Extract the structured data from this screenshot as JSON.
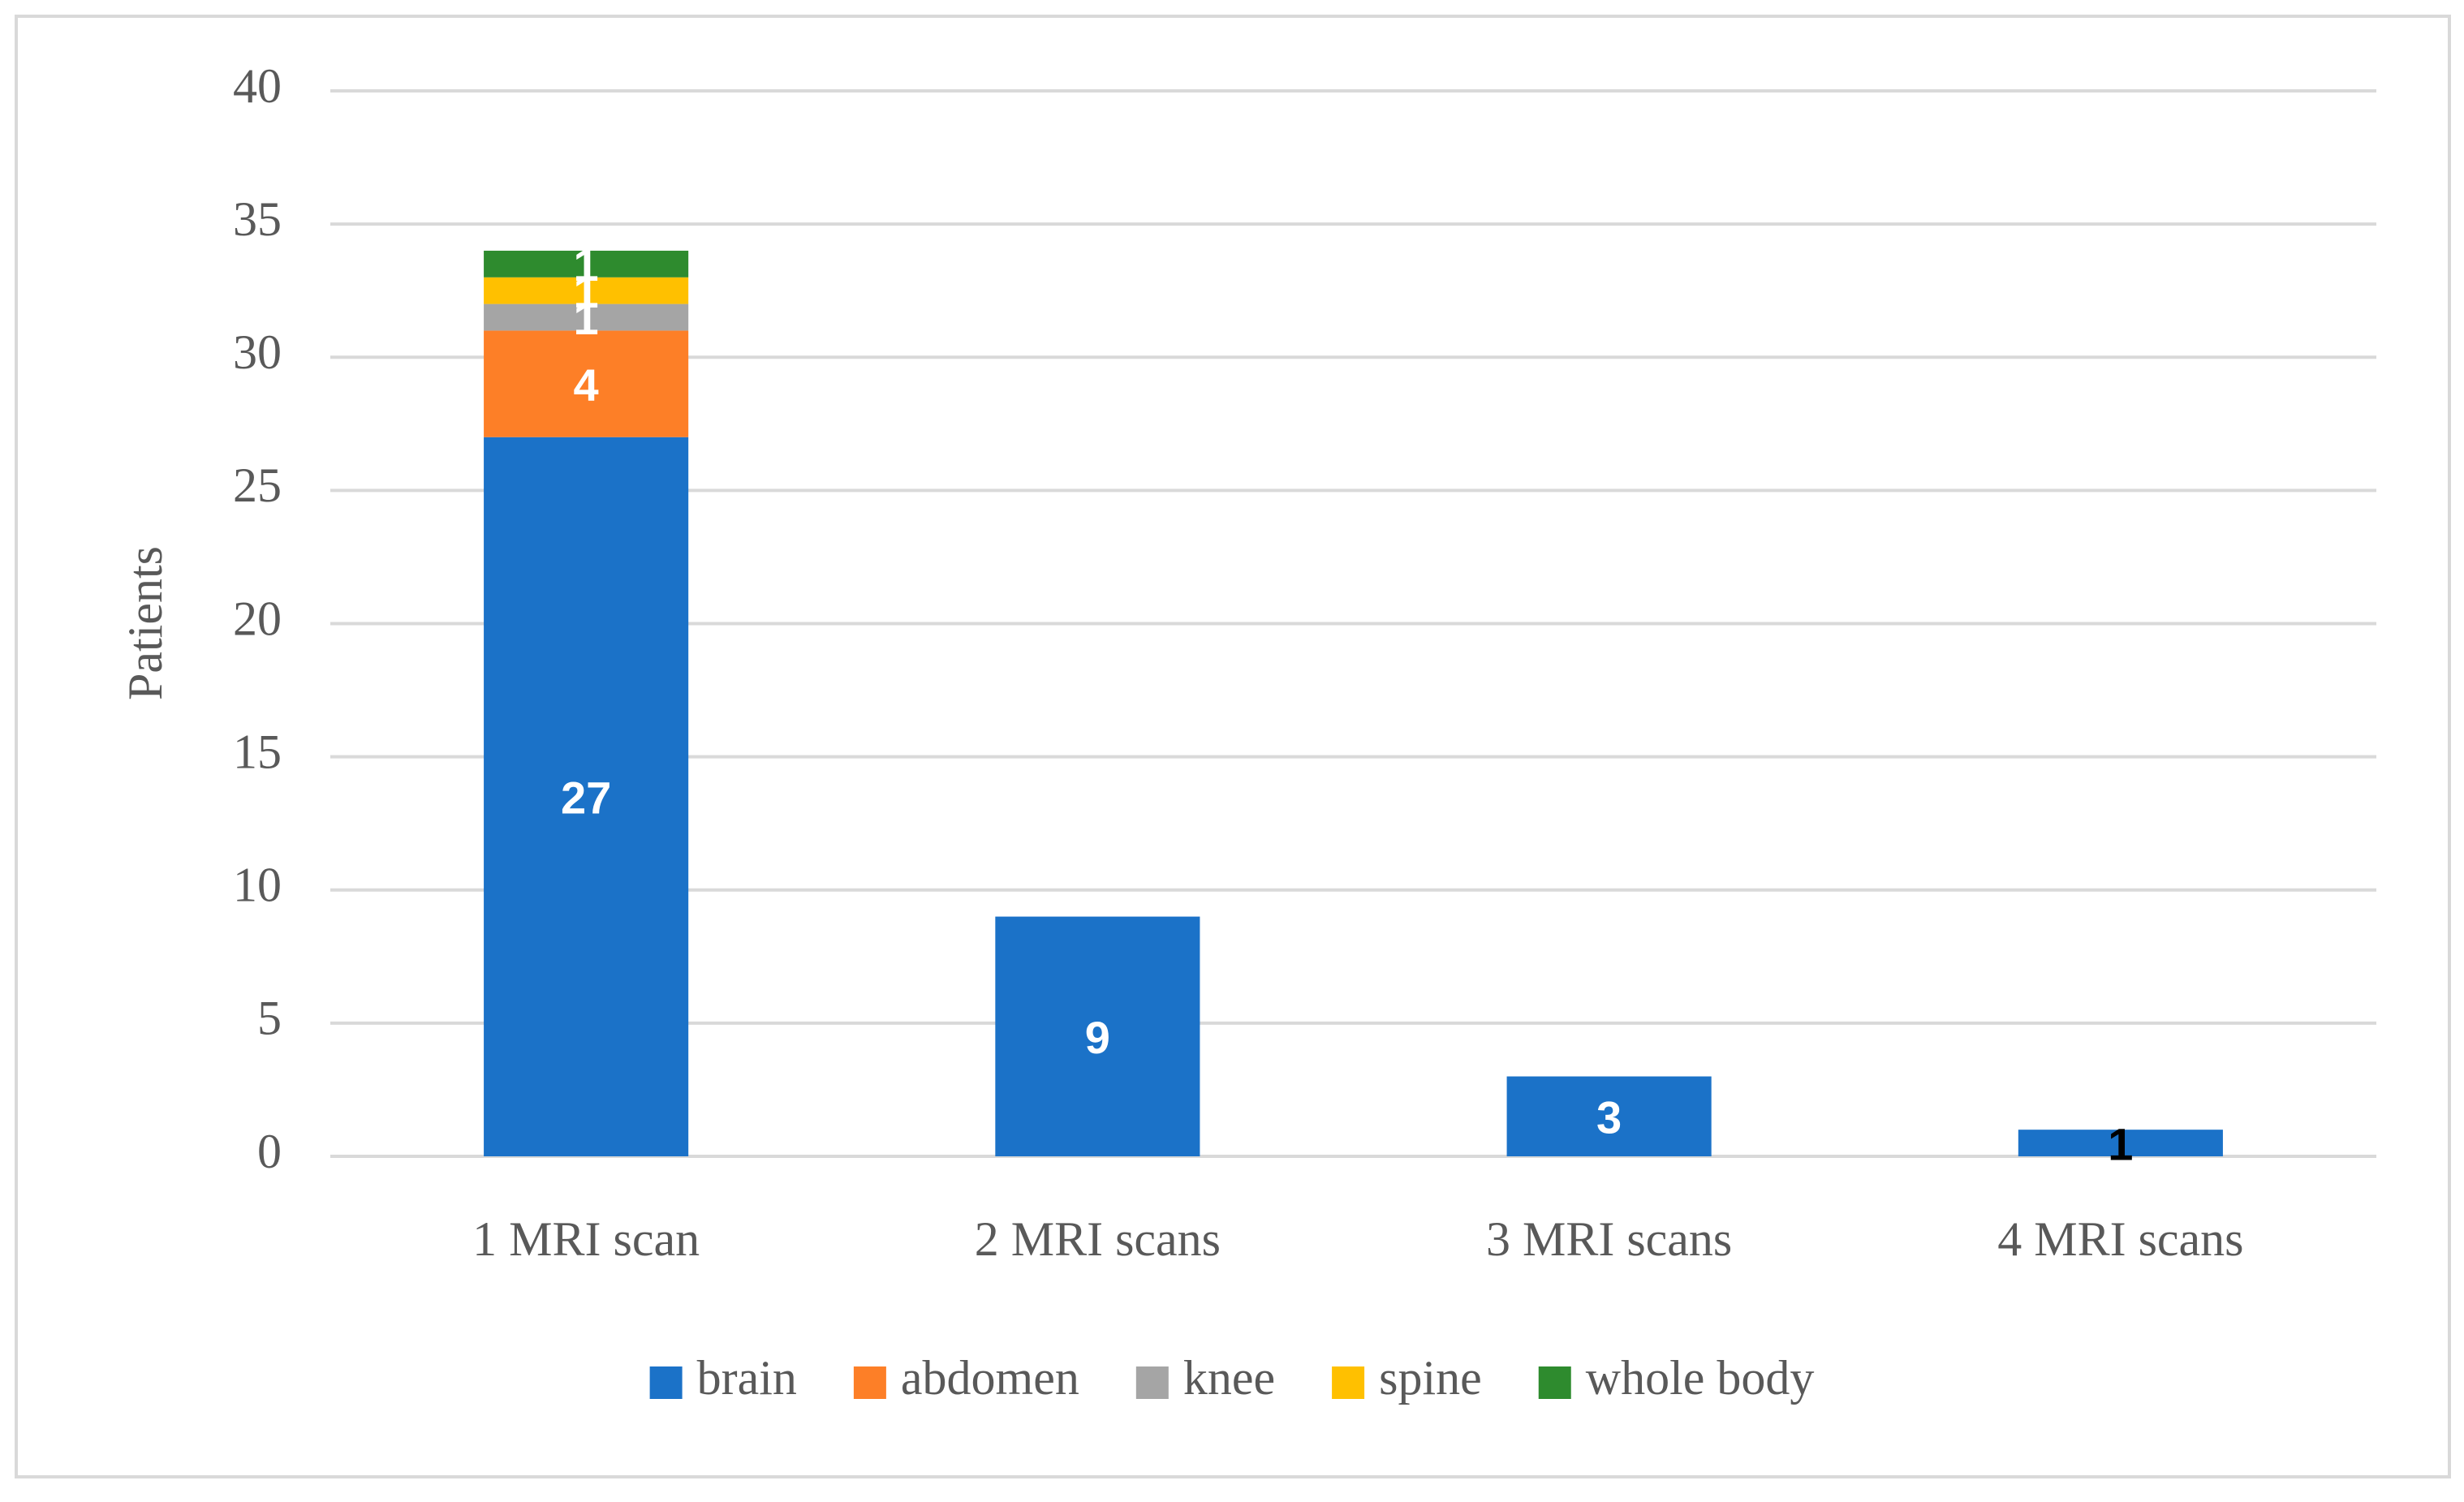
{
  "chart_data": {
    "type": "stacked-bar",
    "y_label": "Patients",
    "categories": [
      "1 MRI scan",
      "2 MRI scans",
      "3 MRI scans",
      "4 MRI scans"
    ],
    "series": [
      {
        "name": "brain",
        "color": "#1b72c8",
        "values": [
          27,
          9,
          3,
          1
        ]
      },
      {
        "name": "abdomen",
        "color": "#fd7f27",
        "values": [
          4,
          null,
          null,
          null
        ]
      },
      {
        "name": "knee",
        "color": "#a5a5a5",
        "values": [
          1,
          null,
          null,
          null
        ]
      },
      {
        "name": "spine",
        "color": "#ffc000",
        "values": [
          1,
          null,
          null,
          null
        ]
      },
      {
        "name": "whole body",
        "color": "#2e8b2e",
        "values": [
          1,
          null,
          null,
          null
        ]
      }
    ],
    "ylim": [
      0,
      40
    ],
    "yticks": [
      0,
      5,
      10,
      15,
      20,
      25,
      30,
      35,
      40
    ],
    "grid": true,
    "legend": "bottom"
  }
}
